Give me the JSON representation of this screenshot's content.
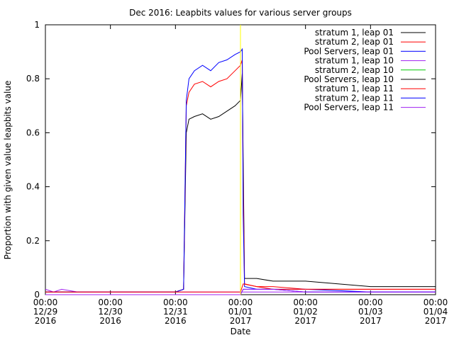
{
  "chart_data": {
    "type": "line",
    "title": "Dec 2016: Leapbits values for various server groups",
    "xlabel": "Date",
    "ylabel": "Proportion with given value leapbits value",
    "xlim": [
      "2016-12-29T00:00",
      "2017-01-04T00:00"
    ],
    "ylim": [
      0,
      1
    ],
    "y_ticks": [
      "0",
      "0.2",
      "0.4",
      "0.6",
      "0.8",
      "1"
    ],
    "x_ticks": [
      {
        "time": "00:00",
        "date": "12/29",
        "year": "2016"
      },
      {
        "time": "00:00",
        "date": "12/30",
        "year": "2016"
      },
      {
        "time": "00:00",
        "date": "12/31",
        "year": "2016"
      },
      {
        "time": "00:00",
        "date": "01/01",
        "year": "2017"
      },
      {
        "time": "00:00",
        "date": "01/02",
        "year": "2017"
      },
      {
        "time": "00:00",
        "date": "01/03",
        "year": "2017"
      },
      {
        "time": "00:00",
        "date": "01/04",
        "year": "2017"
      }
    ],
    "legend_position": "top-right",
    "grid": false,
    "series": [
      {
        "name": "stratum 1, leap 01",
        "color": "#000000",
        "points": [
          [
            "2016-12-29T00:00",
            0.01
          ],
          [
            "2016-12-29T12:00",
            0.01
          ],
          [
            "2016-12-30T00:00",
            0.01
          ],
          [
            "2016-12-30T08:00",
            0.01
          ],
          [
            "2016-12-31T00:00",
            0.01
          ],
          [
            "2016-12-31T03:00",
            0.02
          ],
          [
            "2016-12-31T04:00",
            0.6
          ],
          [
            "2016-12-31T05:00",
            0.65
          ],
          [
            "2016-12-31T07:00",
            0.66
          ],
          [
            "2016-12-31T10:00",
            0.67
          ],
          [
            "2016-12-31T13:00",
            0.65
          ],
          [
            "2016-12-31T16:00",
            0.66
          ],
          [
            "2016-12-31T19:00",
            0.68
          ],
          [
            "2016-12-31T22:00",
            0.7
          ],
          [
            "2017-01-01T00:00",
            0.72
          ],
          [
            "2017-01-01T00:40",
            0.82
          ],
          [
            "2017-01-01T01:00",
            0.5
          ],
          [
            "2017-01-01T01:30",
            0.06
          ],
          [
            "2017-01-01T06:00",
            0.06
          ],
          [
            "2017-01-01T12:00",
            0.05
          ],
          [
            "2017-01-01T18:00",
            0.05
          ],
          [
            "2017-01-02T00:00",
            0.05
          ],
          [
            "2017-01-02T12:00",
            0.04
          ],
          [
            "2017-01-03T00:00",
            0.03
          ],
          [
            "2017-01-03T12:00",
            0.03
          ],
          [
            "2017-01-04T00:00",
            0.03
          ]
        ]
      },
      {
        "name": "stratum 2, leap 01",
        "color": "#ff0000",
        "points": [
          [
            "2016-12-29T00:00",
            0.01
          ],
          [
            "2016-12-29T12:00",
            0.01
          ],
          [
            "2016-12-30T00:00",
            0.01
          ],
          [
            "2016-12-30T08:00",
            0.01
          ],
          [
            "2016-12-31T00:00",
            0.01
          ],
          [
            "2016-12-31T03:00",
            0.02
          ],
          [
            "2016-12-31T04:00",
            0.7
          ],
          [
            "2016-12-31T05:00",
            0.75
          ],
          [
            "2016-12-31T07:00",
            0.78
          ],
          [
            "2016-12-31T10:00",
            0.79
          ],
          [
            "2016-12-31T13:00",
            0.77
          ],
          [
            "2016-12-31T16:00",
            0.79
          ],
          [
            "2016-12-31T19:00",
            0.8
          ],
          [
            "2016-12-31T22:00",
            0.83
          ],
          [
            "2017-01-01T00:00",
            0.85
          ],
          [
            "2017-01-01T00:40",
            0.87
          ],
          [
            "2017-01-01T01:00",
            0.4
          ],
          [
            "2017-01-01T01:30",
            0.04
          ],
          [
            "2017-01-01T06:00",
            0.03
          ],
          [
            "2017-01-01T12:00",
            0.03
          ],
          [
            "2017-01-02T00:00",
            0.02
          ],
          [
            "2017-01-03T00:00",
            0.02
          ],
          [
            "2017-01-04T00:00",
            0.02
          ]
        ]
      },
      {
        "name": "Pool Servers, leap 01",
        "color": "#0000ff",
        "points": [
          [
            "2016-12-29T00:00",
            0.01
          ],
          [
            "2016-12-29T12:00",
            0.01
          ],
          [
            "2016-12-30T00:00",
            0.01
          ],
          [
            "2016-12-30T08:00",
            0.01
          ],
          [
            "2016-12-31T00:00",
            0.01
          ],
          [
            "2016-12-31T03:00",
            0.02
          ],
          [
            "2016-12-31T04:00",
            0.72
          ],
          [
            "2016-12-31T05:00",
            0.8
          ],
          [
            "2016-12-31T07:00",
            0.83
          ],
          [
            "2016-12-31T10:00",
            0.85
          ],
          [
            "2016-12-31T13:00",
            0.83
          ],
          [
            "2016-12-31T16:00",
            0.86
          ],
          [
            "2016-12-31T19:00",
            0.87
          ],
          [
            "2016-12-31T22:00",
            0.89
          ],
          [
            "2017-01-01T00:00",
            0.9
          ],
          [
            "2017-01-01T00:40",
            0.91
          ],
          [
            "2017-01-01T01:00",
            0.3
          ],
          [
            "2017-01-01T01:30",
            0.03
          ],
          [
            "2017-01-01T06:00",
            0.02
          ],
          [
            "2017-01-01T12:00",
            0.02
          ],
          [
            "2017-01-02T00:00",
            0.02
          ],
          [
            "2017-01-03T00:00",
            0.01
          ],
          [
            "2017-01-04T00:00",
            0.01
          ]
        ]
      },
      {
        "name": "stratum 1, leap 10",
        "color": "#a020f0",
        "points": [
          [
            "2016-12-29T00:00",
            0.02
          ],
          [
            "2016-12-29T03:00",
            0.01
          ],
          [
            "2016-12-29T06:00",
            0.02
          ],
          [
            "2016-12-29T12:00",
            0.01
          ],
          [
            "2016-12-30T00:00",
            0.01
          ],
          [
            "2016-12-30T08:00",
            0.01
          ],
          [
            "2016-12-31T00:00",
            0.01
          ],
          [
            "2016-12-31T12:00",
            0.01
          ],
          [
            "2017-01-01T00:00",
            0.01
          ],
          [
            "2017-01-01T01:00",
            0.01
          ],
          [
            "2017-01-02T00:00",
            0.01
          ],
          [
            "2017-01-04T00:00",
            0.01
          ]
        ]
      },
      {
        "name": "stratum 2, leap 10",
        "color": "#00cc00",
        "points": [
          [
            "2016-12-29T00:00",
            0.0
          ],
          [
            "2016-12-30T08:00",
            0.0
          ],
          [
            "2016-12-31T00:00",
            0.0
          ],
          [
            "2017-01-01T00:00",
            0.0
          ],
          [
            "2017-01-02T00:00",
            0.0
          ],
          [
            "2017-01-04T00:00",
            0.0
          ]
        ]
      },
      {
        "name": "Pool Servers, leap 10",
        "color": "#000000",
        "points": [
          [
            "2016-12-29T00:00",
            0.0
          ],
          [
            "2016-12-30T08:00",
            0.0
          ],
          [
            "2016-12-31T00:00",
            0.0
          ],
          [
            "2017-01-01T00:00",
            0.0
          ],
          [
            "2017-01-02T00:00",
            0.0
          ],
          [
            "2017-01-04T00:00",
            0.0
          ]
        ]
      },
      {
        "name": "stratum 1, leap 11",
        "color": "#ff0000",
        "points": [
          [
            "2016-12-29T00:00",
            0.01
          ],
          [
            "2016-12-30T08:00",
            0.01
          ],
          [
            "2016-12-31T00:00",
            0.01
          ],
          [
            "2017-01-01T00:00",
            0.01
          ],
          [
            "2017-01-01T01:00",
            0.04
          ],
          [
            "2017-01-01T06:00",
            0.03
          ],
          [
            "2017-01-01T12:00",
            0.02
          ],
          [
            "2017-01-02T00:00",
            0.02
          ],
          [
            "2017-01-03T00:00",
            0.02
          ],
          [
            "2017-01-04T00:00",
            0.02
          ]
        ]
      },
      {
        "name": "stratum 2, leap 11",
        "color": "#0000ff",
        "points": [
          [
            "2016-12-29T00:00",
            0.0
          ],
          [
            "2016-12-30T08:00",
            0.0
          ],
          [
            "2016-12-31T00:00",
            0.0
          ],
          [
            "2017-01-01T00:00",
            0.0
          ],
          [
            "2017-01-01T01:00",
            0.02
          ],
          [
            "2017-01-01T12:00",
            0.02
          ],
          [
            "2017-01-02T00:00",
            0.01
          ],
          [
            "2017-01-04T00:00",
            0.01
          ]
        ]
      },
      {
        "name": "Pool Servers, leap 11",
        "color": "#a020f0",
        "points": [
          [
            "2016-12-29T00:00",
            0.0
          ],
          [
            "2016-12-30T08:00",
            0.0
          ],
          [
            "2016-12-31T00:00",
            0.0
          ],
          [
            "2017-01-01T00:00",
            0.0
          ],
          [
            "2017-01-01T01:00",
            0.02
          ],
          [
            "2017-01-01T12:00",
            0.02
          ],
          [
            "2017-01-02T00:00",
            0.01
          ],
          [
            "2017-01-04T00:00",
            0.01
          ]
        ]
      }
    ],
    "annotations": [
      {
        "type": "vertical-line",
        "x": "2017-01-01T00:00",
        "color": "#ffff00"
      }
    ]
  }
}
